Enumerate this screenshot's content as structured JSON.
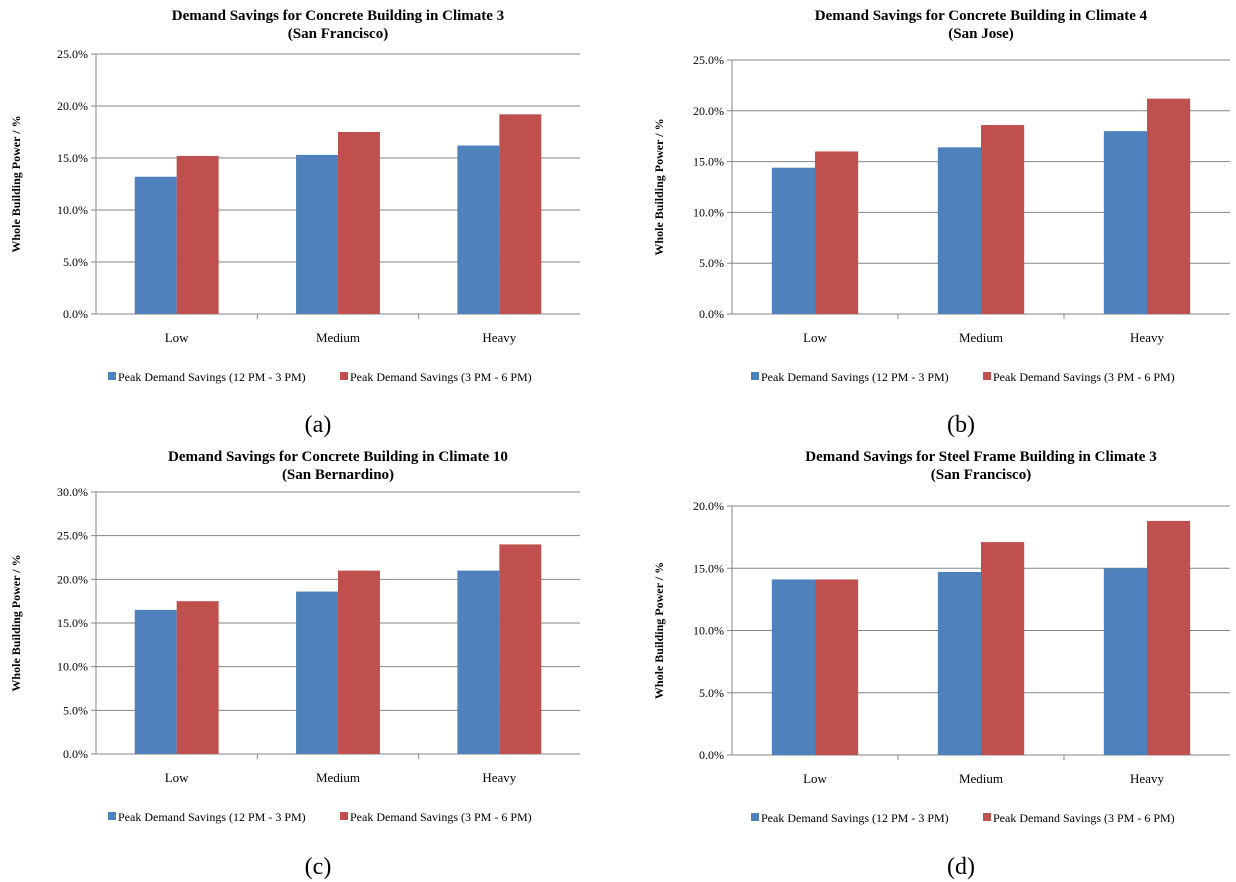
{
  "chart_data": [
    {
      "type": "bar",
      "title": "Demand Savings for Concrete Building in Climate 3",
      "subtitle": "(San Francisco)",
      "caption": "(a)",
      "ylabel": "Whole Building Power / %",
      "xlabel": "",
      "categories": [
        "Low",
        "Medium",
        "Heavy"
      ],
      "ylim": [
        0,
        25
      ],
      "yticks": [
        "0.0%",
        "5.0%",
        "10.0%",
        "15.0%",
        "20.0%",
        "25.0%"
      ],
      "grid": true,
      "legend_position": "bottom",
      "series": [
        {
          "name": "Peak Demand Savings (12 PM - 3 PM)",
          "color": "#4F81BD",
          "values": [
            13.2,
            15.3,
            16.2
          ]
        },
        {
          "name": "Peak Demand Savings (3 PM - 6 PM)",
          "color": "#C0504D",
          "values": [
            15.2,
            17.5,
            19.2
          ]
        }
      ]
    },
    {
      "type": "bar",
      "title": "Demand Savings for Concrete Building in Climate 4",
      "subtitle": "(San Jose)",
      "caption": "(b)",
      "ylabel": "Whole Building Power / %",
      "xlabel": "",
      "categories": [
        "Low",
        "Medium",
        "Heavy"
      ],
      "ylim": [
        0,
        25
      ],
      "yticks": [
        "0.0%",
        "5.0%",
        "10.0%",
        "15.0%",
        "20.0%",
        "25.0%"
      ],
      "grid": true,
      "legend_position": "bottom",
      "series": [
        {
          "name": "Peak Demand Savings (12 PM - 3 PM)",
          "color": "#4F81BD",
          "values": [
            14.4,
            16.4,
            18.0
          ]
        },
        {
          "name": "Peak Demand Savings (3 PM - 6 PM)",
          "color": "#C0504D",
          "values": [
            16.0,
            18.6,
            21.2
          ]
        }
      ]
    },
    {
      "type": "bar",
      "title": "Demand Savings for Concrete Building in Climate 10",
      "subtitle": "(San Bernardino)",
      "caption": "(c)",
      "ylabel": "Whole Building Power / %",
      "xlabel": "",
      "categories": [
        "Low",
        "Medium",
        "Heavy"
      ],
      "ylim": [
        0,
        30
      ],
      "yticks": [
        "0.0%",
        "5.0%",
        "10.0%",
        "15.0%",
        "20.0%",
        "25.0%",
        "30.0%"
      ],
      "grid": true,
      "legend_position": "bottom",
      "series": [
        {
          "name": "Peak Demand Savings (12 PM - 3 PM)",
          "color": "#4F81BD",
          "values": [
            16.5,
            18.6,
            21.0
          ]
        },
        {
          "name": "Peak Demand Savings (3 PM - 6 PM)",
          "color": "#C0504D",
          "values": [
            17.5,
            21.0,
            24.0
          ]
        }
      ]
    },
    {
      "type": "bar",
      "title": "Demand Savings for Steel Frame Building in Climate 3",
      "subtitle": "(San Francisco)",
      "caption": "(d)",
      "ylabel": "Whole Building Power / %",
      "xlabel": "",
      "categories": [
        "Low",
        "Medium",
        "Heavy"
      ],
      "ylim": [
        0,
        20
      ],
      "yticks": [
        "0.0%",
        "5.0%",
        "10.0%",
        "15.0%",
        "20.0%"
      ],
      "grid": true,
      "legend_position": "bottom",
      "series": [
        {
          "name": "Peak Demand Savings (12 PM - 3 PM)",
          "color": "#4F81BD",
          "values": [
            14.1,
            14.7,
            15.0
          ]
        },
        {
          "name": "Peak Demand Savings (3 PM - 6 PM)",
          "color": "#C0504D",
          "values": [
            14.1,
            17.1,
            18.8
          ]
        }
      ]
    }
  ]
}
